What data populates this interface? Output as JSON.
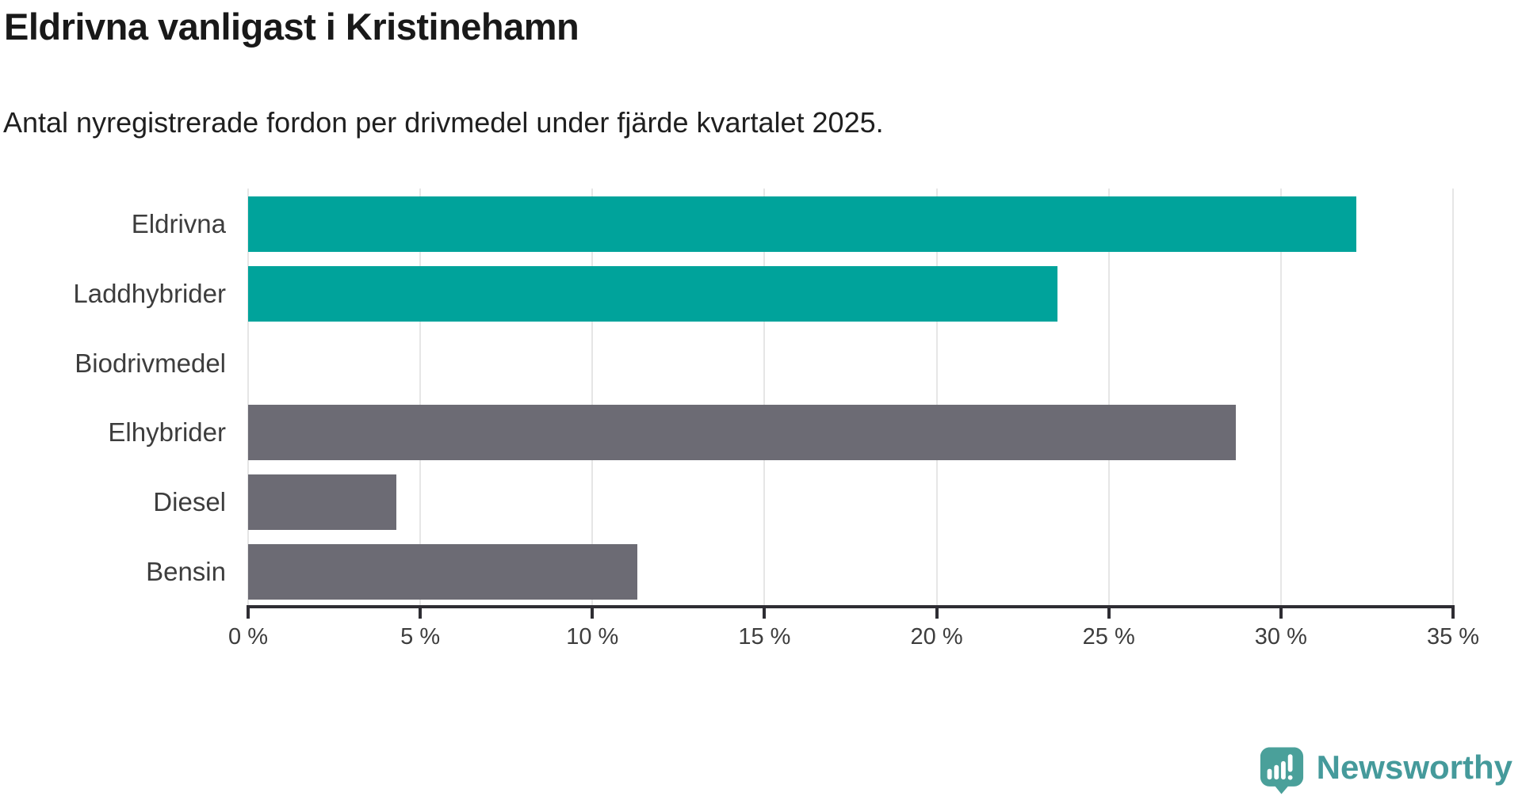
{
  "chart_data": {
    "type": "bar",
    "orientation": "horizontal",
    "title": "Eldrivna vanligast i Kristinehamn",
    "subtitle": "Antal nyregistrerade fordon per drivmedel under fjärde kvartalet 2025.",
    "categories": [
      "Eldrivna",
      "Laddhybrider",
      "Biodrivmedel",
      "Elhybrider",
      "Diesel",
      "Bensin"
    ],
    "values": [
      32.2,
      23.5,
      0,
      28.7,
      4.3,
      11.3
    ],
    "unit": "%",
    "xlim": [
      0,
      35
    ],
    "x_ticks": [
      0,
      5,
      10,
      15,
      20,
      25,
      30,
      35
    ],
    "x_tick_labels": [
      "0 %",
      "5 %",
      "10 %",
      "15 %",
      "20 %",
      "25 %",
      "30 %",
      "35 %"
    ],
    "bar_colors": [
      "#00a39b",
      "#00a39b",
      "#00a39b",
      "#6c6b74",
      "#6c6b74",
      "#6c6b74"
    ],
    "colors": {
      "highlight": "#00a39b",
      "default": "#6c6b74",
      "gridline": "#e6e6e6",
      "axis": "#2e2d33",
      "label": "#3d3d3d"
    },
    "grid": true,
    "legend": false,
    "ylabel": "",
    "xlabel": ""
  },
  "footer": {
    "brand": "Newsworthy",
    "brand_color": "#459a9b",
    "icon_color": "#4aa09a"
  }
}
